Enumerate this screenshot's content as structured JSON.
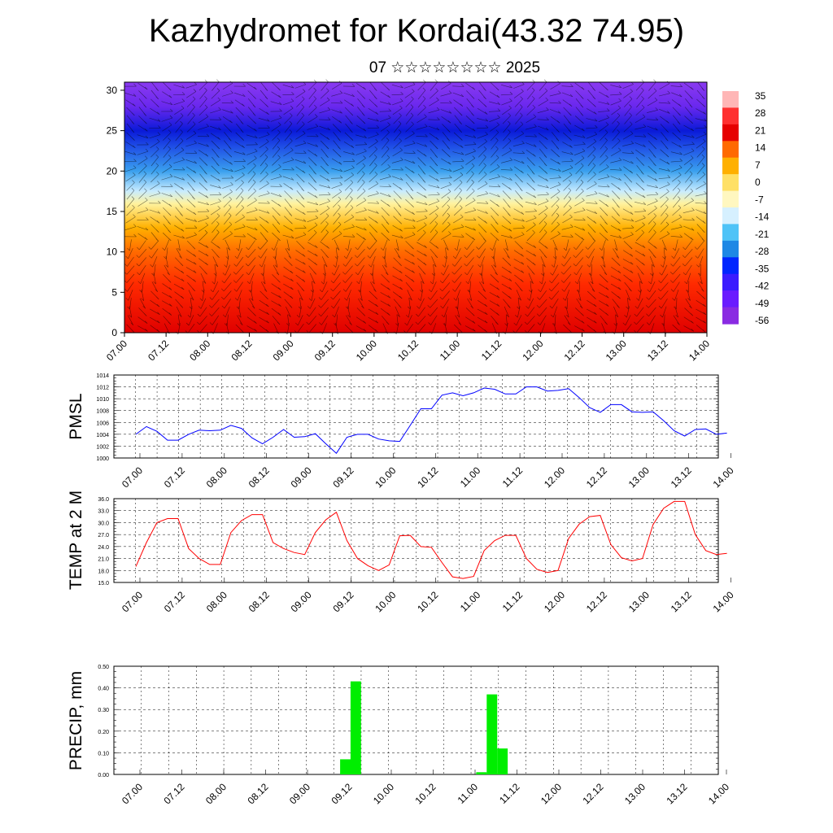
{
  "header": {
    "title": "Kazhydromet for Kordai(43.32 74.95)",
    "subtitle": "07 ☆☆☆☆☆☆☆☆ 2025"
  },
  "time_labels": [
    "07.00",
    "07.12",
    "08.00",
    "08.12",
    "09.00",
    "09.12",
    "10.00",
    "10.12",
    "11.00",
    "11.12",
    "12.00",
    "12.12",
    "13.00",
    "13.12",
    "14.00"
  ],
  "chart_data": [
    {
      "type": "heatmap",
      "title": "",
      "ylim": [
        0,
        31
      ],
      "yticks": [
        "0",
        "5",
        "10",
        "15",
        "20",
        "25",
        "30"
      ],
      "x_ticks": [
        "07.00",
        "07.12",
        "08.00",
        "08.12",
        "09.00",
        "09.12",
        "10.00",
        "10.12",
        "11.00",
        "11.12",
        "12.00",
        "12.12",
        "13.00",
        "13.12",
        "14.00"
      ],
      "colorbar": {
        "labels": [
          "35",
          "28",
          "21",
          "14",
          "7",
          "0",
          "-7",
          "-14",
          "-21",
          "-28",
          "-35",
          "-42",
          "-49",
          "-56"
        ],
        "colors": [
          "#ffb6b6",
          "#ff3030",
          "#e60000",
          "#ff6a00",
          "#ffb000",
          "#ffe066",
          "#fff7c0",
          "#d6f0ff",
          "#4fc3f7",
          "#1e88e5",
          "#0026ff",
          "#3b1cff",
          "#6a1cff",
          "#8a2be2"
        ]
      },
      "profile": [
        {
          "level": 0,
          "color": "#e00000"
        },
        {
          "level": 6,
          "color": "#ff2a00"
        },
        {
          "level": 10,
          "color": "#ff6a00"
        },
        {
          "level": 13,
          "color": "#ffb000"
        },
        {
          "level": 16,
          "color": "#fff3a0"
        },
        {
          "level": 17.5,
          "color": "#c8ecff"
        },
        {
          "level": 20,
          "color": "#3aa0ee"
        },
        {
          "level": 23,
          "color": "#1f4fe6"
        },
        {
          "level": 25,
          "color": "#0a1ad8"
        },
        {
          "level": 28,
          "color": "#6a28ee"
        },
        {
          "level": 31,
          "color": "#8a3af0"
        }
      ]
    },
    {
      "type": "line",
      "ylabel": "PMSL",
      "ylim": [
        1000,
        1014
      ],
      "yticks": [
        "1000",
        "1002",
        "1004",
        "1006",
        "1008",
        "1010",
        "1012",
        "1014"
      ],
      "grid": true,
      "series": [
        {
          "color": "#0000ff",
          "values": [
            1004,
            1005.3,
            1004.5,
            1003,
            1003,
            1004,
            1004.7,
            1004.6,
            1004.7,
            1005.5,
            1005,
            1003.4,
            1002.4,
            1003.5,
            1004.8,
            1003.5,
            1003.6,
            1004.1,
            1002.4,
            1000.8,
            1003.5,
            1004,
            1004,
            1003.2,
            1002.9,
            1002.8,
            1005.5,
            1008.3,
            1008.3,
            1010.6,
            1011,
            1010.5,
            1011,
            1011.8,
            1011.6,
            1010.8,
            1010.8,
            1012,
            1012,
            1011.3,
            1011.4,
            1011.7,
            1010.2,
            1008.5,
            1007.7,
            1009,
            1009,
            1007.8,
            1007.7,
            1007.8,
            1006.3,
            1004.6,
            1003.7,
            1004.8,
            1004.9,
            1004,
            1004.2
          ]
        }
      ]
    },
    {
      "type": "line",
      "ylabel": "TEMP at 2 M",
      "ylim": [
        15,
        36
      ],
      "yticks": [
        "15.0",
        "18.0",
        "21.0",
        "24.0",
        "27.0",
        "30.0",
        "33.0",
        "36.0"
      ],
      "grid": true,
      "series": [
        {
          "color": "#ff0000",
          "values": [
            19,
            25,
            30,
            31,
            31,
            23.5,
            21,
            19.5,
            19.5,
            27.5,
            30.5,
            32,
            32,
            25,
            23.5,
            22.5,
            22,
            27.5,
            30.7,
            32.6,
            25.5,
            21,
            19.2,
            18,
            19.4,
            26.7,
            26.8,
            24,
            23.8,
            20,
            16.4,
            16,
            16.5,
            23,
            25.5,
            26.8,
            26.8,
            21,
            18.3,
            17.5,
            18,
            26,
            29.6,
            31.5,
            31.8,
            24.5,
            21.2,
            20.4,
            21,
            29.5,
            33.6,
            35.3,
            35.3,
            27,
            23,
            22,
            22.3
          ]
        }
      ]
    },
    {
      "type": "bar",
      "ylabel": "PRECIP, mm",
      "ylim": [
        0,
        0.5
      ],
      "yticks": [
        "0.00",
        "0.10",
        "0.20",
        "0.30",
        "0.40",
        "0.50"
      ],
      "grid": true,
      "color": "#00ee00",
      "values": [
        0,
        0,
        0,
        0,
        0,
        0,
        0,
        0,
        0,
        0,
        0,
        0,
        0,
        0,
        0,
        0,
        0,
        0,
        0,
        0,
        0.07,
        0.43,
        0,
        0,
        0,
        0,
        0,
        0,
        0,
        0,
        0,
        0,
        0,
        0.01,
        0.37,
        0.12,
        0,
        0,
        0,
        0,
        0,
        0,
        0,
        0,
        0,
        0,
        0,
        0,
        0,
        0,
        0,
        0,
        0,
        0,
        0,
        0,
        0
      ]
    }
  ]
}
